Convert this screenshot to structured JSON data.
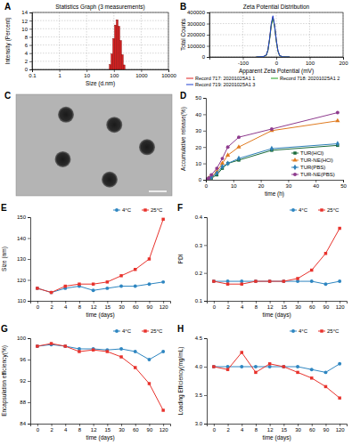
{
  "chart_data": [
    {
      "type": "histogram",
      "title": "Statistics Graph (3 measurements)",
      "annotations": [
        "A"
      ],
      "x_label": "Size (d.nm)",
      "y_label": "Intensity (Percent)",
      "bins": [
        68.06,
        78.82,
        91.28,
        105.7,
        122.4,
        141.8,
        164.2,
        190.1,
        220.2,
        255.0
      ],
      "counts": [
        1.2,
        3.8,
        7.6,
        10.9,
        12.2,
        10.6,
        7.1,
        3.6,
        1.1
      ],
      "color": "#d62020",
      "log": "x",
      "xlim": [
        0.1,
        10000
      ],
      "xticks": [
        0.1,
        1,
        10,
        100,
        1000,
        10000
      ],
      "ylim": [
        0,
        14
      ],
      "yticks": [
        0,
        2,
        4,
        6,
        8,
        10,
        12,
        14
      ],
      "grid": true
    },
    {
      "type": "line",
      "title": "Zeta Potential Distribution",
      "annotations": [
        "B"
      ],
      "x_label": "Apparent Zeta Potential (mV)",
      "y_label": "Total Counts",
      "x": [
        -60,
        -40,
        -30,
        -25,
        -20,
        -15,
        -10,
        -5,
        0,
        5,
        10,
        20,
        40
      ],
      "series": [
        {
          "name": "Record 717: 20201025A1 1",
          "color": "#e02020",
          "values": [
            0,
            2000,
            15000,
            60000,
            160000,
            290000,
            360000,
            280000,
            150000,
            55000,
            12000,
            1000,
            0
          ]
        },
        {
          "name": "Record 718: 20201025A1 2",
          "color": "#20a020",
          "values": [
            0,
            2000,
            14000,
            58000,
            155000,
            280000,
            350000,
            275000,
            145000,
            52000,
            11000,
            1000,
            0
          ]
        },
        {
          "name": "Record 719: 20201025A1 3",
          "color": "#2040d0",
          "values": [
            0,
            2500,
            16000,
            62000,
            165000,
            300000,
            370000,
            285000,
            155000,
            57000,
            13000,
            1000,
            0
          ]
        }
      ],
      "xlim": [
        -200,
        200
      ],
      "xticks": [
        -100,
        0,
        100,
        200
      ],
      "ylim": [
        0,
        400000
      ],
      "yticks": [
        0,
        100000,
        200000,
        300000,
        400000
      ],
      "grid": true,
      "legend": "bottom"
    },
    {
      "type": "image",
      "annotations": [
        "C"
      ]
    },
    {
      "type": "line",
      "annotations": [
        "D"
      ],
      "x_label": "time (h)",
      "y_label": "Accumulative release(%)",
      "x": [
        0,
        1,
        2,
        4,
        6,
        8,
        12,
        24,
        48
      ],
      "series": [
        {
          "name": "TUR(HCl)",
          "color": "#1a6b3a",
          "marker": "square",
          "values": [
            0,
            0.5,
            1,
            3,
            7,
            10,
            12,
            18,
            21
          ]
        },
        {
          "name": "TUR-NE(HCl)",
          "color": "#e07b20",
          "marker": "triangle",
          "values": [
            0,
            1,
            2,
            5,
            10,
            15,
            20,
            30,
            36
          ]
        },
        {
          "name": "TUR(PBS)",
          "color": "#2e7fb8",
          "marker": "diamond",
          "values": [
            0,
            0.5,
            1.5,
            4,
            8,
            10,
            13,
            19,
            22
          ]
        },
        {
          "name": "TUR-NE(PBS)",
          "color": "#8e3b8e",
          "marker": "circle",
          "values": [
            0,
            1,
            3,
            7,
            13,
            20,
            26,
            31,
            41
          ]
        }
      ],
      "xlim": [
        0,
        50
      ],
      "xticks": [
        0,
        10,
        20,
        30,
        40,
        50
      ],
      "ylim": [
        0,
        50
      ],
      "yticks": [
        0,
        10,
        20,
        30,
        40,
        50
      ],
      "legend": "lower-right"
    },
    {
      "type": "line",
      "annotations": [
        "E"
      ],
      "x_label": "time (days)",
      "y_label": "Size (nm)",
      "categories": [
        "0",
        "2",
        "4",
        "8",
        "12",
        "15",
        "30",
        "60",
        "90",
        "120"
      ],
      "series": [
        {
          "name": "4°C",
          "color": "#2e86c1",
          "marker": "circle",
          "values": [
            116,
            114,
            116,
            117,
            115,
            116,
            117,
            117,
            118,
            119
          ]
        },
        {
          "name": "25°C",
          "color": "#e8322c",
          "marker": "square",
          "values": [
            116,
            114,
            117,
            118,
            118,
            119,
            122,
            125,
            130,
            149
          ]
        }
      ],
      "ylim": [
        110,
        150
      ],
      "yticks": [
        110,
        120,
        130,
        140,
        150
      ],
      "legend": "top-right"
    },
    {
      "type": "line",
      "annotations": [
        "F"
      ],
      "x_label": "time (days)",
      "y_label": "PDI",
      "categories": [
        "0",
        "2",
        "4",
        "8",
        "12",
        "15",
        "30",
        "60",
        "90",
        "120"
      ],
      "series": [
        {
          "name": "4°C",
          "color": "#2e86c1",
          "marker": "circle",
          "values": [
            0.17,
            0.17,
            0.17,
            0.17,
            0.17,
            0.17,
            0.17,
            0.17,
            0.16,
            0.17
          ]
        },
        {
          "name": "25°C",
          "color": "#e8322c",
          "marker": "square",
          "values": [
            0.17,
            0.16,
            0.16,
            0.17,
            0.17,
            0.17,
            0.18,
            0.21,
            0.27,
            0.36
          ]
        }
      ],
      "ylim": [
        0.1,
        0.4
      ],
      "yticks": [
        0.1,
        0.2,
        0.3,
        0.4
      ],
      "legend": "top-right"
    },
    {
      "type": "line",
      "annotations": [
        "G"
      ],
      "x_label": "time (days)",
      "y_label": "Encapsulation efficiency(%)",
      "categories": [
        "0",
        "2",
        "4",
        "8",
        "12",
        "15",
        "30",
        "60",
        "90",
        "120"
      ],
      "series": [
        {
          "name": "4°C",
          "color": "#2e86c1",
          "marker": "circle",
          "values": [
            98.5,
            98.8,
            98.5,
            98,
            98,
            97.8,
            98,
            97.5,
            96,
            97.5
          ]
        },
        {
          "name": "25°C",
          "color": "#e8322c",
          "marker": "square",
          "values": [
            98.5,
            99,
            98.5,
            97.5,
            97.8,
            97.5,
            96.5,
            94.5,
            91.5,
            86.5
          ]
        }
      ],
      "ylim": [
        84,
        100
      ],
      "yticks": [
        84,
        88,
        92,
        96,
        100
      ],
      "legend": "top-right"
    },
    {
      "type": "line",
      "annotations": [
        "H"
      ],
      "x_label": "time (days)",
      "y_label": "Loading Efficiency(mg/mL)",
      "categories": [
        "0",
        "2",
        "4",
        "8",
        "12",
        "15",
        "30",
        "60",
        "90",
        "120"
      ],
      "series": [
        {
          "name": "4°C",
          "color": "#2e86c1",
          "marker": "circle",
          "values": [
            4.0,
            4.0,
            4.0,
            4.0,
            4.0,
            4.0,
            4.0,
            3.95,
            3.9,
            4.05
          ]
        },
        {
          "name": "25°C",
          "color": "#e8322c",
          "marker": "square",
          "values": [
            4.0,
            3.95,
            4.25,
            3.9,
            4.05,
            4.0,
            3.9,
            3.8,
            3.65,
            3.45
          ]
        }
      ],
      "ylim": [
        3,
        4.5
      ],
      "yticks": [
        {
          "value": 3,
          "label": "3.0"
        },
        3.5,
        {
          "value": 4,
          "label": "4.0"
        },
        4.5
      ],
      "legend": "top-right"
    }
  ]
}
